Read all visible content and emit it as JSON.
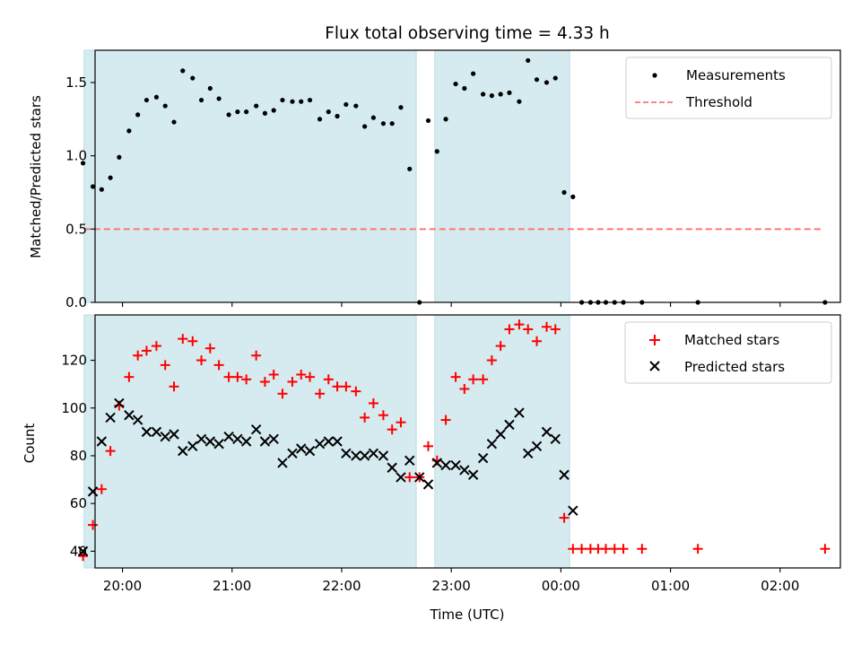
{
  "chart_data": {
    "type": "scatter",
    "title": "Flux total observing time = 4.33 h",
    "xlabel": "Time (UTC)",
    "x_unit": "hours since 00:00 UTC",
    "xlim": [
      -4.25,
      2.55
    ],
    "xticks": [
      {
        "value": -4,
        "label": "20:00"
      },
      {
        "value": -3,
        "label": "21:00"
      },
      {
        "value": -2,
        "label": "22:00"
      },
      {
        "value": -1,
        "label": "23:00"
      },
      {
        "value": 0,
        "label": "00:00"
      },
      {
        "value": 1,
        "label": "01:00"
      },
      {
        "value": 2,
        "label": "02:00"
      }
    ],
    "shaded_intervals": [
      [
        -4.35,
        -1.32
      ],
      [
        -1.15,
        0.08
      ]
    ],
    "shade_color": "#d5ebf0",
    "panels": [
      {
        "ylabel": "Matched/Predicted stars",
        "ylim": [
          0,
          1.72
        ],
        "yticks": [
          {
            "value": 0,
            "label": "0.0"
          },
          {
            "value": 0.5,
            "label": "0.5"
          },
          {
            "value": 1.0,
            "label": "1.0"
          },
          {
            "value": 1.5,
            "label": "1.5"
          }
        ],
        "threshold": {
          "value": 0.5,
          "x_range": [
            -4.35,
            2.4
          ],
          "color": "#ff7575"
        },
        "legend": {
          "position": "upper right",
          "entries": [
            "Measurements",
            "Threshold"
          ]
        },
        "series": [
          {
            "name": "Measurements",
            "marker": "dot",
            "color": "#000000",
            "points": [
              [
                -4.36,
                0.95
              ],
              [
                -4.27,
                0.79
              ],
              [
                -4.19,
                0.77
              ],
              [
                -4.11,
                0.85
              ],
              [
                -4.03,
                0.99
              ],
              [
                -3.94,
                1.17
              ],
              [
                -3.86,
                1.28
              ],
              [
                -3.78,
                1.38
              ],
              [
                -3.69,
                1.4
              ],
              [
                -3.61,
                1.34
              ],
              [
                -3.53,
                1.23
              ],
              [
                -3.45,
                1.58
              ],
              [
                -3.36,
                1.53
              ],
              [
                -3.28,
                1.38
              ],
              [
                -3.2,
                1.46
              ],
              [
                -3.12,
                1.39
              ],
              [
                -3.03,
                1.28
              ],
              [
                -2.95,
                1.3
              ],
              [
                -2.87,
                1.3
              ],
              [
                -2.78,
                1.34
              ],
              [
                -2.7,
                1.29
              ],
              [
                -2.62,
                1.31
              ],
              [
                -2.54,
                1.38
              ],
              [
                -2.45,
                1.37
              ],
              [
                -2.37,
                1.37
              ],
              [
                -2.29,
                1.38
              ],
              [
                -2.2,
                1.25
              ],
              [
                -2.12,
                1.3
              ],
              [
                -2.04,
                1.27
              ],
              [
                -1.96,
                1.35
              ],
              [
                -1.87,
                1.34
              ],
              [
                -1.79,
                1.2
              ],
              [
                -1.71,
                1.26
              ],
              [
                -1.62,
                1.22
              ],
              [
                -1.54,
                1.22
              ],
              [
                -1.46,
                1.33
              ],
              [
                -1.38,
                0.91
              ],
              [
                -1.29,
                0.0
              ],
              [
                -1.21,
                1.24
              ],
              [
                -1.13,
                1.03
              ],
              [
                -1.05,
                1.25
              ],
              [
                -0.96,
                1.49
              ],
              [
                -0.88,
                1.46
              ],
              [
                -0.8,
                1.56
              ],
              [
                -0.71,
                1.42
              ],
              [
                -0.63,
                1.41
              ],
              [
                -0.55,
                1.42
              ],
              [
                -0.47,
                1.43
              ],
              [
                -0.38,
                1.37
              ],
              [
                -0.3,
                1.65
              ],
              [
                -0.22,
                1.52
              ],
              [
                -0.13,
                1.5
              ],
              [
                -0.05,
                1.53
              ],
              [
                0.03,
                0.75
              ],
              [
                0.11,
                0.72
              ],
              [
                0.19,
                0.0
              ],
              [
                0.27,
                0.0
              ],
              [
                0.34,
                0.0
              ],
              [
                0.41,
                0.0
              ],
              [
                0.49,
                0.0
              ],
              [
                0.57,
                0.0
              ],
              [
                0.74,
                0.0
              ],
              [
                1.25,
                0.0
              ],
              [
                2.41,
                0.0
              ]
            ]
          }
        ]
      },
      {
        "ylabel": "Count",
        "ylim": [
          33,
          139
        ],
        "yticks": [
          {
            "value": 40,
            "label": "40"
          },
          {
            "value": 60,
            "label": "60"
          },
          {
            "value": 80,
            "label": "80"
          },
          {
            "value": 100,
            "label": "100"
          },
          {
            "value": 120,
            "label": "120"
          }
        ],
        "legend": {
          "position": "upper right",
          "entries": [
            "Matched stars",
            "Predicted stars"
          ]
        },
        "series": [
          {
            "name": "Matched stars",
            "marker": "plus",
            "color": "#ff0000",
            "points": [
              [
                -4.36,
                38
              ],
              [
                -4.27,
                51
              ],
              [
                -4.19,
                66
              ],
              [
                -4.11,
                82
              ],
              [
                -4.03,
                101
              ],
              [
                -3.94,
                113
              ],
              [
                -3.86,
                122
              ],
              [
                -3.78,
                124
              ],
              [
                -3.69,
                126
              ],
              [
                -3.61,
                118
              ],
              [
                -3.53,
                109
              ],
              [
                -3.45,
                129
              ],
              [
                -3.36,
                128
              ],
              [
                -3.28,
                120
              ],
              [
                -3.2,
                125
              ],
              [
                -3.12,
                118
              ],
              [
                -3.03,
                113
              ],
              [
                -2.95,
                113
              ],
              [
                -2.87,
                112
              ],
              [
                -2.78,
                122
              ],
              [
                -2.7,
                111
              ],
              [
                -2.62,
                114
              ],
              [
                -2.54,
                106
              ],
              [
                -2.45,
                111
              ],
              [
                -2.37,
                114
              ],
              [
                -2.29,
                113
              ],
              [
                -2.2,
                106
              ],
              [
                -2.12,
                112
              ],
              [
                -2.04,
                109
              ],
              [
                -1.96,
                109
              ],
              [
                -1.87,
                107
              ],
              [
                -1.79,
                96
              ],
              [
                -1.71,
                102
              ],
              [
                -1.62,
                97
              ],
              [
                -1.54,
                91
              ],
              [
                -1.46,
                94
              ],
              [
                -1.38,
                71
              ],
              [
                -1.29,
                71
              ],
              [
                -1.21,
                84
              ],
              [
                -1.13,
                78
              ],
              [
                -1.05,
                95
              ],
              [
                -0.96,
                113
              ],
              [
                -0.88,
                108
              ],
              [
                -0.8,
                112
              ],
              [
                -0.71,
                112
              ],
              [
                -0.63,
                120
              ],
              [
                -0.55,
                126
              ],
              [
                -0.47,
                133
              ],
              [
                -0.38,
                135
              ],
              [
                -0.3,
                133
              ],
              [
                -0.22,
                128
              ],
              [
                -0.13,
                134
              ],
              [
                -0.05,
                133
              ],
              [
                0.03,
                54
              ],
              [
                0.11,
                41
              ],
              [
                0.19,
                41
              ],
              [
                0.27,
                41
              ],
              [
                0.34,
                41
              ],
              [
                0.41,
                41
              ],
              [
                0.49,
                41
              ],
              [
                0.57,
                41
              ],
              [
                0.74,
                41
              ],
              [
                1.25,
                41
              ],
              [
                2.41,
                41
              ]
            ]
          },
          {
            "name": "Predicted stars",
            "marker": "x",
            "color": "#000000",
            "points": [
              [
                -4.36,
                40
              ],
              [
                -4.27,
                65
              ],
              [
                -4.19,
                86
              ],
              [
                -4.11,
                96
              ],
              [
                -4.03,
                102
              ],
              [
                -3.94,
                97
              ],
              [
                -3.86,
                95
              ],
              [
                -3.78,
                90
              ],
              [
                -3.69,
                90
              ],
              [
                -3.61,
                88
              ],
              [
                -3.53,
                89
              ],
              [
                -3.45,
                82
              ],
              [
                -3.36,
                84
              ],
              [
                -3.28,
                87
              ],
              [
                -3.2,
                86
              ],
              [
                -3.12,
                85
              ],
              [
                -3.03,
                88
              ],
              [
                -2.95,
                87
              ],
              [
                -2.87,
                86
              ],
              [
                -2.78,
                91
              ],
              [
                -2.7,
                86
              ],
              [
                -2.62,
                87
              ],
              [
                -2.54,
                77
              ],
              [
                -2.45,
                81
              ],
              [
                -2.37,
                83
              ],
              [
                -2.29,
                82
              ],
              [
                -2.2,
                85
              ],
              [
                -2.12,
                86
              ],
              [
                -2.04,
                86
              ],
              [
                -1.96,
                81
              ],
              [
                -1.87,
                80
              ],
              [
                -1.79,
                80
              ],
              [
                -1.71,
                81
              ],
              [
                -1.62,
                80
              ],
              [
                -1.54,
                75
              ],
              [
                -1.46,
                71
              ],
              [
                -1.38,
                78
              ],
              [
                -1.29,
                71
              ],
              [
                -1.21,
                68
              ],
              [
                -1.13,
                77
              ],
              [
                -1.05,
                76
              ],
              [
                -0.96,
                76
              ],
              [
                -0.88,
                74
              ],
              [
                -0.8,
                72
              ],
              [
                -0.71,
                79
              ],
              [
                -0.63,
                85
              ],
              [
                -0.55,
                89
              ],
              [
                -0.47,
                93
              ],
              [
                -0.38,
                98
              ],
              [
                -0.3,
                81
              ],
              [
                -0.22,
                84
              ],
              [
                -0.13,
                90
              ],
              [
                -0.05,
                87
              ],
              [
                0.03,
                72
              ],
              [
                0.11,
                57
              ]
            ]
          }
        ]
      }
    ]
  }
}
